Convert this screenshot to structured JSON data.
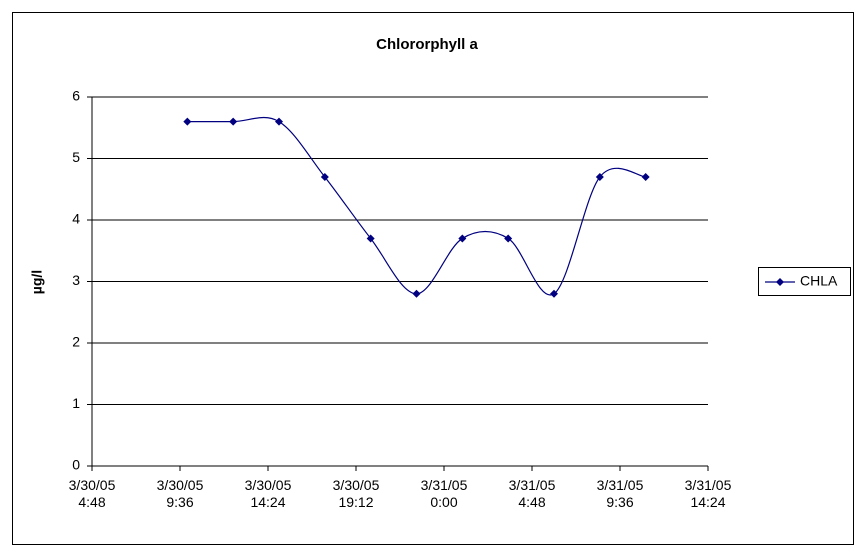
{
  "chart_data": {
    "type": "line",
    "title": "Chlororphyll a",
    "y_label": "µg/l",
    "x": [
      "3/30/05 10:00",
      "3/30/05 12:30",
      "3/30/05 15:00",
      "3/30/05 17:30",
      "3/30/05 20:00",
      "3/30/05 22:30",
      "3/31/05 1:00",
      "3/31/05 3:30",
      "3/31/05 6:00",
      "3/31/05 8:30",
      "3/31/05 11:00"
    ],
    "series": [
      {
        "name": "CHLA",
        "color": "#000080",
        "values": [
          5.6,
          5.6,
          5.6,
          4.7,
          3.7,
          2.8,
          3.7,
          3.7,
          2.8,
          4.7,
          4.7
        ]
      }
    ],
    "xlim": [
      "3/30/05 4:48",
      "3/31/05 14:24"
    ],
    "xticks": [
      "3/30/05 4:48",
      "3/30/05 9:36",
      "3/30/05 14:24",
      "3/30/05 19:12",
      "3/31/05 0:00",
      "3/31/05 4:48",
      "3/31/05 9:36",
      "3/31/05 14:24"
    ],
    "ylim": [
      0,
      6
    ],
    "yticks": [
      0,
      1,
      2,
      3,
      4,
      5,
      6
    ],
    "grid": true,
    "smooth": true,
    "legend": "right"
  }
}
